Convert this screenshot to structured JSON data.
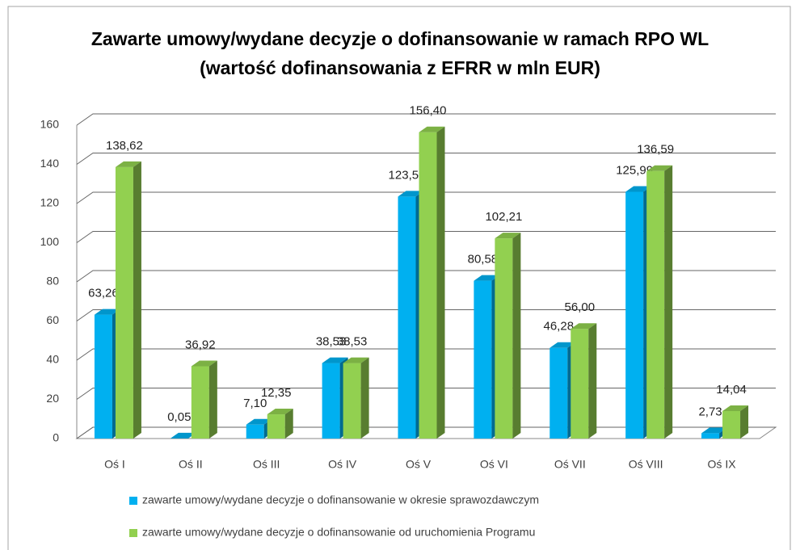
{
  "chart_data": {
    "type": "bar3d",
    "title": "Zawarte umowy/wydane decyzje o dofinansowanie w ramach RPO WL (wartość dofinansowania z EFRR w mln EUR)",
    "categories": [
      "Oś I",
      "Oś II",
      "Oś III",
      "Oś IV",
      "Oś V",
      "Oś VI",
      "Oś VII",
      "Oś VIII",
      "Oś IX"
    ],
    "series": [
      {
        "name": "zawarte umowy/wydane decyzje o dofinansowanie w okresie sprawozdawczym",
        "color": "#00b0f0",
        "values": [
          63.26,
          0.05,
          7.1,
          38.53,
          123.55,
          80.58,
          46.28,
          125.99,
          2.73
        ],
        "value_labels": [
          "63,26",
          "0,05",
          "7,10",
          "38,53",
          "123,55",
          "80,58",
          "46,28",
          "125,99",
          "2,73"
        ]
      },
      {
        "name": "zawarte umowy/wydane decyzje o dofinansowanie od uruchomienia Programu",
        "color": "#92d050",
        "values": [
          138.62,
          36.92,
          12.35,
          38.53,
          156.4,
          102.21,
          56.0,
          136.59,
          14.04
        ],
        "value_labels": [
          "138,62",
          "36,92",
          "12,35",
          "38,53",
          "156,40",
          "102,21",
          "56,00",
          "136,59",
          "14,04"
        ]
      }
    ],
    "ylim": [
      0,
      160
    ],
    "yticks": [
      0,
      20,
      40,
      60,
      80,
      100,
      120,
      140,
      160
    ],
    "grid": true,
    "legend": "bottom"
  }
}
